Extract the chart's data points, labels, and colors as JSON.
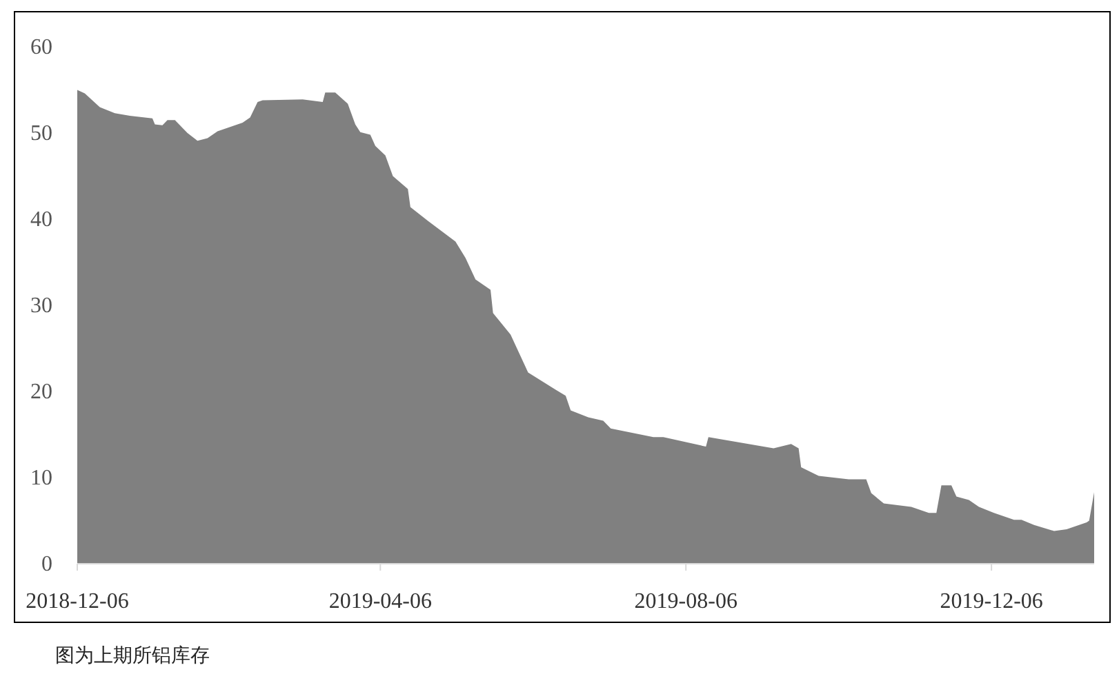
{
  "chart_data": {
    "type": "area",
    "annotations": [
      "图为上期所铝库存"
    ],
    "x": [
      "2018-12-06",
      "2018-12-09",
      "2018-12-15",
      "2018-12-21",
      "2018-12-27",
      "2019-01-05",
      "2019-01-06",
      "2019-01-09",
      "2019-01-11",
      "2019-01-14",
      "2019-01-19",
      "2019-01-23",
      "2019-01-27",
      "2019-01-31",
      "2019-02-10",
      "2019-02-13",
      "2019-02-16",
      "2019-02-18",
      "2019-03-06",
      "2019-03-14",
      "2019-03-15",
      "2019-03-19",
      "2019-03-24",
      "2019-03-27",
      "2019-03-29",
      "2019-04-02",
      "2019-04-04",
      "2019-04-08",
      "2019-04-11",
      "2019-04-17",
      "2019-04-18",
      "2019-04-25",
      "2019-05-06",
      "2019-05-10",
      "2019-05-14",
      "2019-05-20",
      "2019-05-21",
      "2019-05-28",
      "2019-06-04",
      "2019-06-15",
      "2019-06-19",
      "2019-06-21",
      "2019-06-28",
      "2019-07-04",
      "2019-07-07",
      "2019-07-24",
      "2019-07-28",
      "2019-08-14",
      "2019-08-15",
      "2019-09-10",
      "2019-09-17",
      "2019-09-20",
      "2019-09-21",
      "2019-09-28",
      "2019-10-10",
      "2019-10-17",
      "2019-10-19",
      "2019-10-24",
      "2019-11-04",
      "2019-11-11",
      "2019-11-14",
      "2019-11-16",
      "2019-11-20",
      "2019-11-22",
      "2019-11-27",
      "2019-12-01",
      "2019-12-07",
      "2019-12-15",
      "2019-12-18",
      "2019-12-23",
      "2019-12-31",
      "2020-01-05",
      "2020-01-13",
      "2020-01-14",
      "2020-01-16"
    ],
    "series": [
      {
        "color": "#808080",
        "values": [
          55.0,
          54.6,
          53.0,
          52.3,
          52.0,
          51.7,
          51.0,
          50.9,
          51.5,
          51.5,
          50.0,
          49.1,
          49.4,
          50.2,
          51.2,
          51.8,
          53.6,
          53.8,
          53.9,
          53.6,
          54.7,
          54.7,
          53.4,
          51.0,
          50.1,
          49.8,
          48.5,
          47.4,
          45.0,
          43.5,
          41.4,
          39.8,
          37.4,
          35.5,
          33.0,
          31.8,
          29.1,
          26.6,
          22.2,
          20.2,
          19.5,
          17.8,
          17.0,
          16.6,
          15.7,
          14.7,
          14.7,
          13.6,
          14.7,
          13.4,
          13.9,
          13.4,
          11.2,
          10.2,
          9.8,
          9.8,
          8.2,
          7.0,
          6.6,
          5.9,
          5.9,
          9.1,
          9.1,
          7.8,
          7.4,
          6.6,
          5.9,
          5.1,
          5.1,
          4.5,
          3.8,
          4.0,
          4.8,
          5.0,
          8.3
        ]
      }
    ],
    "xlim": [
      "2018-12-06",
      "2020-01-16"
    ],
    "xticks": [
      {
        "value": "2018-12-06",
        "label": "2018-12-06"
      },
      {
        "value": "2019-04-06",
        "label": "2019-04-06"
      },
      {
        "value": "2019-08-06",
        "label": "2019-08-06"
      },
      {
        "value": "2019-12-06",
        "label": "2019-12-06"
      }
    ],
    "ylim": [
      0,
      60
    ],
    "yticks": [
      0,
      10,
      20,
      30,
      40,
      50,
      60
    ],
    "grid": false
  }
}
